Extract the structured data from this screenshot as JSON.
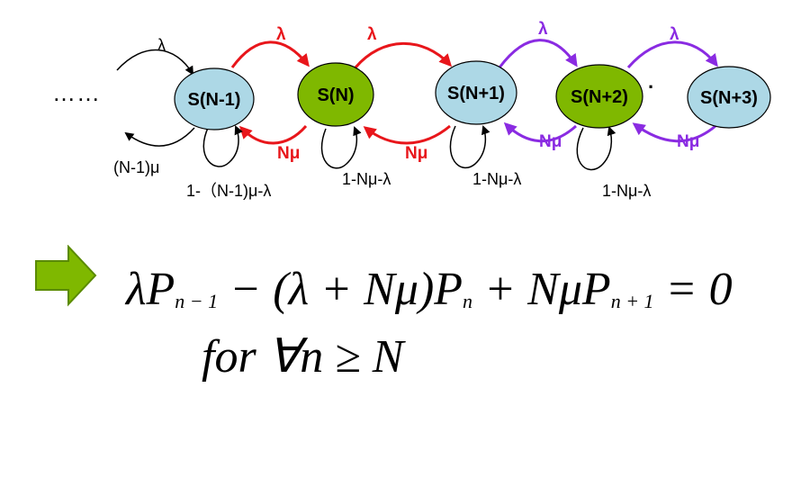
{
  "diagram": {
    "ellipsis": "……",
    "stray_dot": "·",
    "states": [
      {
        "label": "S(N-1)",
        "fill": "#add8e6"
      },
      {
        "label": "S(N)",
        "fill": "#7fb800"
      },
      {
        "label": "S(N+1)",
        "fill": "#add8e6"
      },
      {
        "label": "S(N+2)",
        "fill": "#7fb800"
      },
      {
        "label": "S(N+3)",
        "fill": "#add8e6"
      }
    ],
    "arrival_label": "λ",
    "departure_label": "Nμ",
    "departure_first_label": "(N-1)μ",
    "self_loop_labels": [
      "1-（N-1)μ-λ",
      "1-Nμ-λ",
      "1-Nμ-λ",
      "1-Nμ-λ"
    ],
    "colors": {
      "red": "#e8161b",
      "purple": "#8a2be2",
      "black": "#000000"
    }
  },
  "equation": {
    "line1": {
      "t1": "λP",
      "s1": "n − 1",
      "t2": " − (λ + Nμ)P",
      "s2": "n",
      "t3": " + NμP",
      "s3": "n + 1",
      "t4": " = 0"
    },
    "line2": "for  ∀n ≥ N"
  },
  "icons": {
    "arrow": "right-arrow-icon",
    "arrow_color": "#7fb800"
  }
}
